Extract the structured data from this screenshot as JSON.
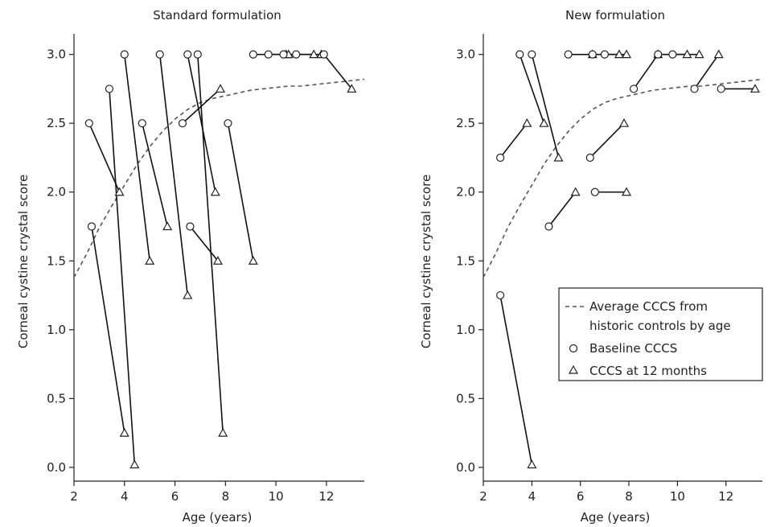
{
  "chart_data": [
    {
      "type": "line",
      "title": "Standard formulation",
      "xlabel": "Age (years)",
      "ylabel": "Corneal cystine crystal score",
      "xlim": [
        2,
        13.5
      ],
      "ylim": [
        -0.1,
        3.15
      ],
      "xticks": [
        2,
        4,
        6,
        8,
        10,
        12
      ],
      "yticks": [
        0.0,
        0.5,
        1.0,
        1.5,
        2.0,
        2.5,
        3.0
      ],
      "ytick_labels": [
        "0.0",
        "0.5",
        "1.0",
        "1.5",
        "2.0",
        "2.5",
        "3.0"
      ],
      "average_curve": {
        "x": [
          2.0,
          2.5,
          3.0,
          3.5,
          4.0,
          4.5,
          5.0,
          5.5,
          6.0,
          6.5,
          7.0,
          7.5,
          8.0,
          8.5,
          9.0,
          9.5,
          10.0,
          10.5,
          11.0,
          11.5,
          12.0,
          12.5,
          13.0,
          13.5
        ],
        "y": [
          1.38,
          1.55,
          1.74,
          1.9,
          2.05,
          2.2,
          2.33,
          2.44,
          2.53,
          2.6,
          2.65,
          2.68,
          2.7,
          2.72,
          2.74,
          2.75,
          2.76,
          2.77,
          2.77,
          2.78,
          2.79,
          2.8,
          2.81,
          2.82
        ]
      },
      "series": [
        {
          "baseline": [
            2.6,
            2.5
          ],
          "month12": [
            3.8,
            2.0
          ]
        },
        {
          "baseline": [
            2.7,
            1.75
          ],
          "month12": [
            4.0,
            0.25
          ]
        },
        {
          "baseline": [
            3.4,
            2.75
          ],
          "month12": [
            4.4,
            0.02
          ]
        },
        {
          "baseline": [
            4.0,
            3.0
          ],
          "month12": [
            5.0,
            1.5
          ]
        },
        {
          "baseline": [
            4.7,
            2.5
          ],
          "month12": [
            5.7,
            1.75
          ]
        },
        {
          "baseline": [
            5.4,
            3.0
          ],
          "month12": [
            6.5,
            1.25
          ]
        },
        {
          "baseline": [
            6.3,
            2.5
          ],
          "month12": [
            7.8,
            2.75
          ]
        },
        {
          "baseline": [
            6.5,
            3.0
          ],
          "month12": [
            7.6,
            2.0
          ]
        },
        {
          "baseline": [
            6.6,
            1.75
          ],
          "month12": [
            7.7,
            1.5
          ]
        },
        {
          "baseline": [
            6.9,
            3.0
          ],
          "month12": [
            7.9,
            0.25
          ]
        },
        {
          "baseline": [
            8.1,
            2.5
          ],
          "month12": [
            9.1,
            1.5
          ]
        },
        {
          "baseline": [
            9.1,
            3.0
          ],
          "month12": [
            10.4,
            3.0
          ]
        },
        {
          "baseline": [
            9.7,
            3.0
          ],
          "month12": [
            10.5,
            3.0
          ]
        },
        {
          "baseline": [
            10.3,
            3.0
          ],
          "month12": [
            11.5,
            3.0
          ]
        },
        {
          "baseline": [
            10.8,
            3.0
          ],
          "month12": [
            11.8,
            3.0
          ]
        },
        {
          "baseline": [
            11.9,
            3.0
          ],
          "month12": [
            13.0,
            2.75
          ]
        }
      ]
    },
    {
      "type": "line",
      "title": "New formulation",
      "xlabel": "Age (years)",
      "ylabel": "Corneal cystine crystal score",
      "xlim": [
        2,
        13.5
      ],
      "ylim": [
        -0.1,
        3.15
      ],
      "xticks": [
        2,
        4,
        6,
        8,
        10,
        12
      ],
      "yticks": [
        0.0,
        0.5,
        1.0,
        1.5,
        2.0,
        2.5,
        3.0
      ],
      "ytick_labels": [
        "0.0",
        "0.5",
        "1.0",
        "1.5",
        "2.0",
        "2.5",
        "3.0"
      ],
      "average_curve": {
        "x": [
          2.0,
          2.5,
          3.0,
          3.5,
          4.0,
          4.5,
          5.0,
          5.5,
          6.0,
          6.5,
          7.0,
          7.5,
          8.0,
          8.5,
          9.0,
          9.5,
          10.0,
          10.5,
          11.0,
          11.5,
          12.0,
          12.5,
          13.0,
          13.5
        ],
        "y": [
          1.38,
          1.55,
          1.74,
          1.9,
          2.05,
          2.2,
          2.33,
          2.44,
          2.53,
          2.6,
          2.65,
          2.68,
          2.7,
          2.72,
          2.74,
          2.75,
          2.76,
          2.77,
          2.77,
          2.78,
          2.79,
          2.8,
          2.81,
          2.82
        ]
      },
      "series": [
        {
          "baseline": [
            2.7,
            1.25
          ],
          "month12": [
            4.0,
            0.02
          ]
        },
        {
          "baseline": [
            2.7,
            2.25
          ],
          "month12": [
            3.8,
            2.5
          ]
        },
        {
          "baseline": [
            3.5,
            3.0
          ],
          "month12": [
            4.5,
            2.5
          ]
        },
        {
          "baseline": [
            4.0,
            3.0
          ],
          "month12": [
            5.1,
            2.25
          ]
        },
        {
          "baseline": [
            4.7,
            1.75
          ],
          "month12": [
            5.8,
            2.0
          ]
        },
        {
          "baseline": [
            5.5,
            3.0
          ],
          "month12": [
            6.5,
            3.0
          ]
        },
        {
          "baseline": [
            6.4,
            2.25
          ],
          "month12": [
            7.8,
            2.5
          ]
        },
        {
          "baseline": [
            6.6,
            2.0
          ],
          "month12": [
            7.9,
            2.0
          ]
        },
        {
          "baseline": [
            6.5,
            3.0
          ],
          "month12": [
            7.6,
            3.0
          ]
        },
        {
          "baseline": [
            7.0,
            3.0
          ],
          "month12": [
            7.9,
            3.0
          ]
        },
        {
          "baseline": [
            8.2,
            2.75
          ],
          "month12": [
            9.2,
            3.0
          ]
        },
        {
          "baseline": [
            9.2,
            3.0
          ],
          "month12": [
            10.4,
            3.0
          ]
        },
        {
          "baseline": [
            9.8,
            3.0
          ],
          "month12": [
            10.9,
            3.0
          ]
        },
        {
          "baseline": [
            10.7,
            2.75
          ],
          "month12": [
            11.7,
            3.0
          ]
        },
        {
          "baseline": [
            11.8,
            2.75
          ],
          "month12": [
            13.2,
            2.75
          ]
        }
      ],
      "legend": {
        "placement": "lower-right",
        "entries": [
          {
            "label_line1": "Average CCCS from",
            "label_line2": "historic controls by age",
            "style": "dashed"
          },
          {
            "label_line1": "Baseline CCCS",
            "style": "circle"
          },
          {
            "label_line1": "CCCS at 12 months",
            "style": "triangle"
          }
        ]
      }
    }
  ]
}
